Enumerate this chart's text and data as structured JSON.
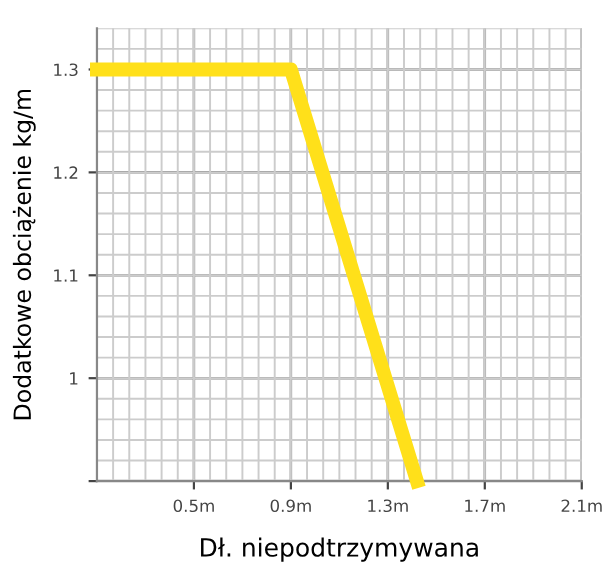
{
  "chart_data": {
    "type": "line",
    "xlabel": "Dł. niepodtrzymywana",
    "ylabel": "Dodatkowe obciążenie kg/m",
    "x": [
      0.1,
      0.9,
      1.42
    ],
    "series": [
      {
        "color": "#ffe01a",
        "values": [
          1.3,
          1.3,
          0.9
        ]
      }
    ],
    "xlim": [
      0.1,
      2.1
    ],
    "ylim": [
      0.9,
      1.34
    ],
    "xticks": [
      {
        "value": 0.5,
        "label": "0.5m"
      },
      {
        "value": 0.9,
        "label": "0.9m"
      },
      {
        "value": 1.3,
        "label": "1.3m"
      },
      {
        "value": 1.7,
        "label": "1.7m"
      },
      {
        "value": 2.1,
        "label": "2.1m"
      }
    ],
    "yticks": [
      {
        "value": 0.9,
        "label": null
      },
      1,
      1.1,
      1.2,
      1.3
    ],
    "grid": true,
    "marker": "none",
    "line_style": "solid"
  }
}
